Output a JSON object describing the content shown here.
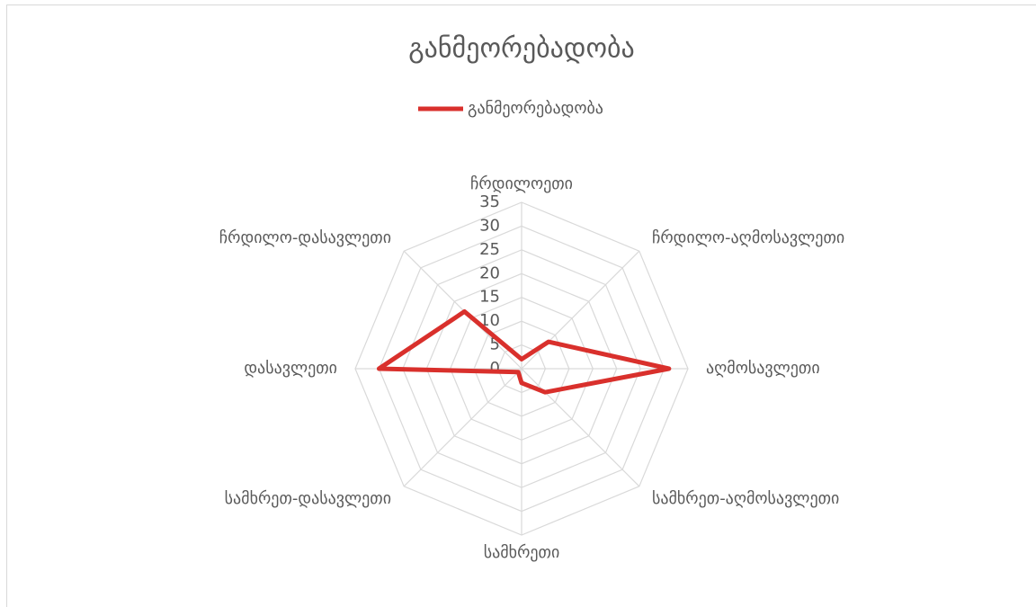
{
  "chart_data": {
    "type": "radar",
    "title": "განმეორებადობა",
    "categories": [
      "ჩრდილოეთი",
      "ჩრდილო-აღმოსავლეთი",
      "აღმოსავლეთი",
      "სამხრეთ-აღმოსავლეთი",
      "სამხრეთი",
      "სამხრეთ-დასავლეთი",
      "დასავლეთი",
      "ჩრდილო-დასავლეთი"
    ],
    "series": [
      {
        "name": "განმეორებადობა",
        "color": "#d9302c",
        "values": [
          2,
          8,
          31,
          7,
          3,
          1,
          30,
          17
        ]
      }
    ],
    "ylim": [
      0,
      35
    ],
    "yticks": [
      0,
      5,
      10,
      15,
      20,
      25,
      30,
      35
    ],
    "grid": true,
    "legend": "top"
  }
}
